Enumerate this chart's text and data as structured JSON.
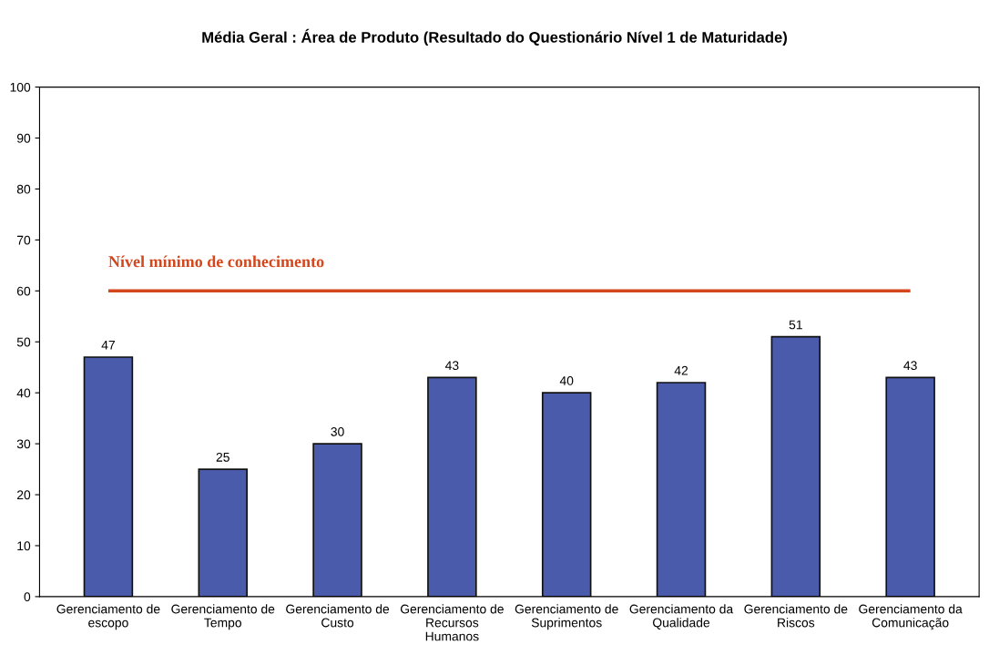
{
  "chart_data": {
    "type": "bar",
    "title": "Média Geral : Área de Produto (Resultado do Questionário Nível 1 de Maturidade)",
    "categories": [
      "Gerenciamento de\nescopo",
      "Gerenciamento de\nTempo",
      "Gerenciamento de\nCusto",
      "Gerenciamento de\nRecursos\nHumanos",
      "Gerenciamento de\nSuprimentos",
      "Gerenciamento da\nQualidade",
      "Gerenciamento de\nRiscos",
      "Gerenciamento da\nComunicação"
    ],
    "values": [
      47,
      25,
      30,
      43,
      40,
      42,
      51,
      43
    ],
    "color": "#4b5bab",
    "data_labels": true,
    "ylim": [
      0,
      100
    ],
    "yticks": [
      0,
      10,
      20,
      30,
      40,
      50,
      60,
      70,
      80,
      90,
      100
    ],
    "grid": false,
    "ref_lines": [
      {
        "axis": "y",
        "value": 60,
        "label": "Nível mínimo de conhecimento",
        "color": "#d4461c",
        "line_style": "solid"
      }
    ]
  }
}
